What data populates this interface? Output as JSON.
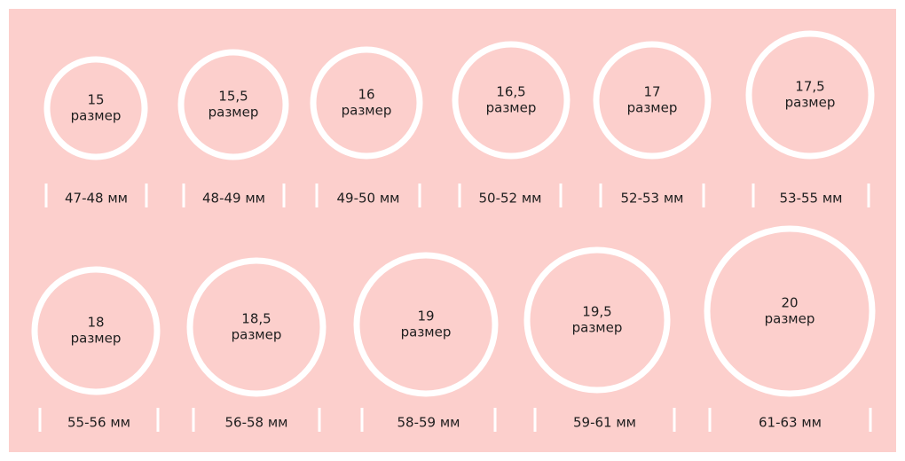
{
  "rings": [
    {
      "size": "15",
      "word": "размер",
      "range": "47-48 мм"
    },
    {
      "size": "15,5",
      "word": "размер",
      "range": "48-49 мм"
    },
    {
      "size": "16",
      "word": "размер",
      "range": "49-50 мм"
    },
    {
      "size": "16,5",
      "word": "размер",
      "range": "50-52 мм"
    },
    {
      "size": "17",
      "word": "размер",
      "range": "52-53 мм"
    },
    {
      "size": "17,5",
      "word": "размер",
      "range": "53-55 мм"
    },
    {
      "size": "18",
      "word": "размер",
      "range": "55-56 мм"
    },
    {
      "size": "18,5",
      "word": "размер",
      "range": "56-58 мм"
    },
    {
      "size": "19",
      "word": "размер",
      "range": "58-59 мм"
    },
    {
      "size": "19,5",
      "word": "размер",
      "range": "59-61 мм"
    },
    {
      "size": "20",
      "word": "размер",
      "range": "61-63 мм"
    }
  ]
}
